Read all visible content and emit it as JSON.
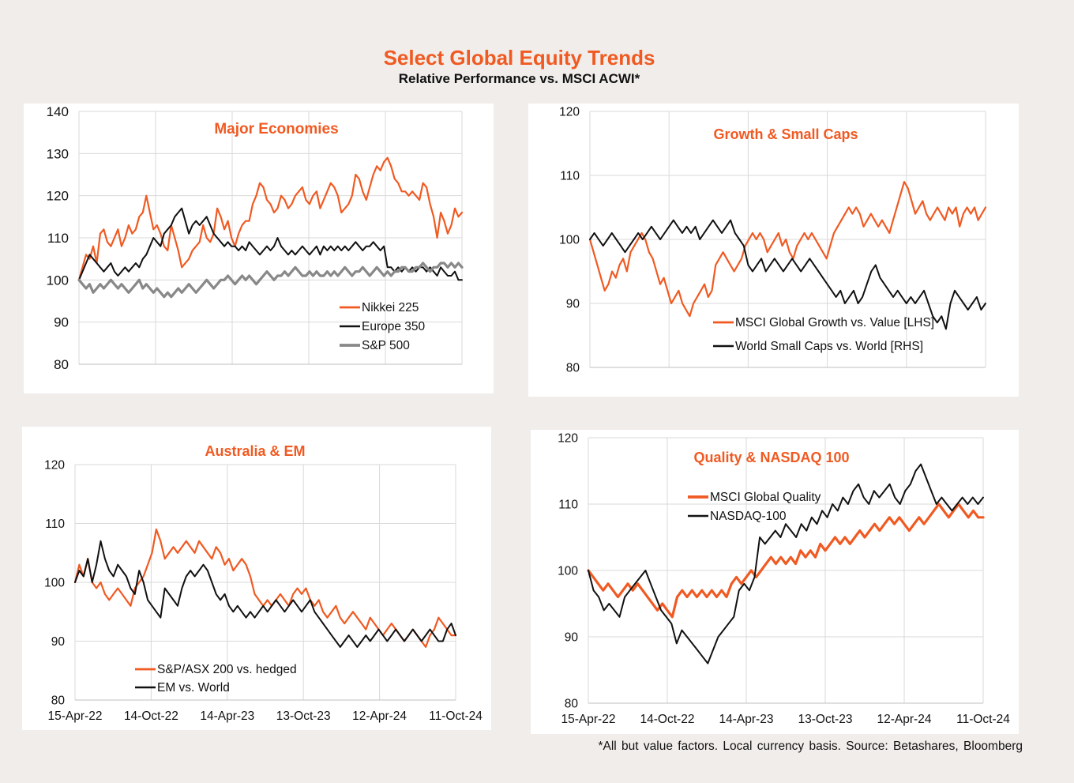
{
  "title": "Select Global Equity Trends",
  "subtitle": "Relative Performance vs. MSCI ACWI*",
  "footnote": "*All but value factors. Local currency basis.  Source: Betashares, Bloomberg",
  "colors": {
    "orange": "#f05a22",
    "black": "#111111",
    "grey": "#888888",
    "grid": "#d9d9d9"
  },
  "chart_data": [
    {
      "type": "line",
      "title": "Major Economies",
      "ylim": [
        80,
        140
      ],
      "yticks": [
        80,
        90,
        100,
        110,
        120,
        130,
        140
      ],
      "xlabels": [],
      "legend_position": "lower-right",
      "series": [
        {
          "name": "Nikkei 225",
          "color": "#f05a22",
          "width": 2.2,
          "values": [
            100,
            103,
            106,
            105,
            108,
            104,
            111,
            112,
            109,
            108,
            110,
            112,
            108,
            110,
            113,
            111,
            112,
            115,
            116,
            120,
            116,
            112,
            113,
            111,
            108,
            107,
            113,
            110,
            107,
            103,
            104,
            105,
            107,
            108,
            109,
            113,
            110,
            109,
            111,
            117,
            115,
            112,
            114,
            110,
            108,
            111,
            113,
            114,
            114,
            118,
            120,
            123,
            122,
            119,
            118,
            116,
            117,
            120,
            119,
            117,
            118,
            120,
            121,
            122,
            119,
            118,
            120,
            121,
            117,
            119,
            121,
            123,
            122,
            120,
            116,
            117,
            118,
            120,
            125,
            124,
            121,
            119,
            122,
            125,
            127,
            126,
            128,
            129,
            127,
            124,
            123,
            121,
            121,
            120,
            121,
            120,
            119,
            123,
            122,
            118,
            115,
            110,
            116,
            114,
            111,
            113,
            117,
            115,
            116
          ]
        },
        {
          "name": "Europe 350",
          "color": "#111111",
          "width": 2,
          "values": [
            100,
            102,
            104,
            106,
            105,
            104,
            103,
            102,
            103,
            104,
            102,
            101,
            102,
            103,
            102,
            103,
            104,
            103,
            105,
            106,
            108,
            110,
            109,
            108,
            111,
            112,
            113,
            115,
            116,
            117,
            114,
            111,
            113,
            114,
            113,
            114,
            115,
            113,
            111,
            110,
            109,
            108,
            109,
            108,
            108,
            107,
            108,
            107,
            109,
            108,
            107,
            106,
            107,
            108,
            107,
            108,
            110,
            108,
            107,
            106,
            107,
            106,
            107,
            108,
            107,
            106,
            107,
            108,
            106,
            108,
            107,
            108,
            107,
            108,
            107,
            108,
            107,
            108,
            109,
            108,
            107,
            108,
            108,
            109,
            108,
            107,
            108,
            103,
            103,
            102,
            103,
            102,
            103,
            102,
            103,
            102,
            103,
            103,
            102,
            103,
            102,
            101,
            103,
            102,
            101,
            101,
            102,
            100,
            100
          ]
        },
        {
          "name": "S&P 500",
          "color": "#888888",
          "width": 3.2,
          "values": [
            100,
            99,
            98,
            99,
            97,
            98,
            99,
            98,
            99,
            100,
            99,
            98,
            99,
            98,
            97,
            98,
            99,
            100,
            98,
            99,
            98,
            97,
            98,
            97,
            96,
            97,
            96,
            97,
            98,
            97,
            98,
            99,
            98,
            97,
            98,
            99,
            100,
            99,
            98,
            99,
            100,
            100,
            101,
            100,
            99,
            100,
            101,
            100,
            101,
            100,
            99,
            100,
            101,
            102,
            101,
            100,
            101,
            101,
            102,
            101,
            102,
            103,
            102,
            101,
            101,
            102,
            101,
            102,
            101,
            101,
            102,
            101,
            102,
            101,
            102,
            103,
            102,
            101,
            102,
            102,
            103,
            102,
            101,
            102,
            103,
            102,
            101,
            102,
            101,
            102,
            102,
            103,
            103,
            102,
            102,
            103,
            103,
            104,
            103,
            102,
            103,
            103,
            104,
            104,
            103,
            104,
            103,
            104,
            103
          ]
        }
      ]
    },
    {
      "type": "line",
      "title": "Growth & Small Caps",
      "ylim": [
        80,
        120
      ],
      "yticks": [
        80,
        90,
        100,
        110,
        120
      ],
      "xlabels": [],
      "legend_position": "lower-right",
      "series": [
        {
          "name": "MSCI Global Growth vs. Value [LHS]",
          "color": "#f05a22",
          "width": 2.2,
          "values": [
            100,
            98,
            96,
            94,
            92,
            93,
            95,
            94,
            96,
            97,
            95,
            98,
            99,
            100,
            101,
            100,
            98,
            97,
            95,
            93,
            94,
            92,
            90,
            91,
            92,
            90,
            89,
            88,
            90,
            91,
            92,
            93,
            91,
            92,
            96,
            97,
            98,
            97,
            96,
            95,
            96,
            97,
            99,
            100,
            101,
            100,
            101,
            100,
            98,
            99,
            100,
            101,
            99,
            100,
            98,
            97,
            99,
            100,
            101,
            100,
            101,
            100,
            99,
            98,
            97,
            99,
            101,
            102,
            103,
            104,
            105,
            104,
            105,
            104,
            102,
            103,
            104,
            103,
            102,
            103,
            102,
            101,
            103,
            105,
            107,
            109,
            108,
            106,
            104,
            105,
            106,
            104,
            103,
            104,
            105,
            104,
            103,
            105,
            104,
            105,
            102,
            104,
            105,
            104,
            105,
            103,
            104,
            105
          ]
        },
        {
          "name": "World Small Caps vs. World [RHS]",
          "color": "#111111",
          "width": 2,
          "values": [
            100,
            101,
            100,
            99,
            100,
            101,
            100,
            99,
            98,
            99,
            100,
            101,
            100,
            101,
            102,
            101,
            100,
            101,
            102,
            103,
            102,
            101,
            102,
            101,
            102,
            100,
            101,
            102,
            103,
            102,
            101,
            102,
            103,
            101,
            100,
            99,
            96,
            95,
            96,
            97,
            95,
            96,
            97,
            96,
            95,
            96,
            97,
            96,
            95,
            96,
            97,
            96,
            95,
            94,
            93,
            92,
            91,
            92,
            90,
            91,
            92,
            90,
            91,
            93,
            95,
            96,
            94,
            93,
            92,
            91,
            92,
            91,
            90,
            91,
            90,
            91,
            92,
            90,
            88,
            87,
            88,
            86,
            90,
            92,
            91,
            90,
            89,
            90,
            91,
            89,
            90
          ]
        }
      ]
    },
    {
      "type": "line",
      "title": "Australia & EM",
      "ylim": [
        80,
        120
      ],
      "yticks": [
        80,
        90,
        100,
        110,
        120
      ],
      "xlabels": [
        "15-Apr-22",
        "14-Oct-22",
        "14-Apr-23",
        "13-Oct-23",
        "12-Apr-24",
        "11-Oct-24"
      ],
      "legend_position": "lower-left",
      "series": [
        {
          "name": "S&P/ASX 200 vs. hedged",
          "color": "#f05a22",
          "width": 2.2,
          "values": [
            100,
            103,
            101,
            104,
            100,
            99,
            100,
            98,
            97,
            98,
            99,
            98,
            97,
            96,
            99,
            100,
            101,
            103,
            105,
            109,
            107,
            104,
            105,
            106,
            105,
            106,
            107,
            106,
            105,
            107,
            106,
            105,
            104,
            106,
            105,
            103,
            104,
            102,
            103,
            104,
            103,
            101,
            98,
            97,
            96,
            97,
            96,
            97,
            98,
            97,
            96,
            98,
            99,
            98,
            99,
            97,
            96,
            97,
            95,
            94,
            95,
            96,
            94,
            93,
            94,
            95,
            94,
            93,
            92,
            94,
            93,
            92,
            91,
            92,
            93,
            92,
            91,
            90,
            91,
            92,
            91,
            90,
            89,
            91,
            92,
            94,
            93,
            92,
            91,
            91
          ]
        },
        {
          "name": "EM vs. World",
          "color": "#111111",
          "width": 2,
          "values": [
            100,
            102,
            101,
            104,
            100,
            103,
            107,
            104,
            102,
            101,
            103,
            102,
            101,
            99,
            98,
            102,
            100,
            97,
            96,
            95,
            94,
            99,
            98,
            97,
            96,
            99,
            101,
            102,
            101,
            102,
            103,
            102,
            100,
            98,
            97,
            98,
            96,
            95,
            96,
            95,
            94,
            95,
            94,
            95,
            96,
            95,
            96,
            97,
            96,
            95,
            96,
            97,
            96,
            95,
            96,
            97,
            95,
            94,
            93,
            92,
            91,
            90,
            89,
            90,
            91,
            90,
            89,
            90,
            91,
            90,
            91,
            92,
            91,
            90,
            91,
            92,
            91,
            90,
            91,
            92,
            91,
            90,
            91,
            92,
            91,
            90,
            90,
            92,
            93,
            91
          ]
        }
      ]
    },
    {
      "type": "line",
      "title": "Quality & NASDAQ 100",
      "ylim": [
        80,
        120
      ],
      "yticks": [
        80,
        90,
        100,
        110,
        120
      ],
      "xlabels": [
        "15-Apr-22",
        "14-Oct-22",
        "14-Apr-23",
        "13-Oct-23",
        "12-Apr-24",
        "11-Oct-24"
      ],
      "legend_position": "upper-left",
      "series": [
        {
          "name": "MSCI Global Quality",
          "color": "#f05a22",
          "width": 3.2,
          "values": [
            100,
            99,
            98,
            97,
            98,
            97,
            96,
            97,
            98,
            97,
            98,
            97,
            96,
            95,
            94,
            95,
            94,
            93,
            96,
            97,
            96,
            97,
            96,
            97,
            96,
            97,
            96,
            97,
            96,
            98,
            99,
            98,
            99,
            100,
            99,
            100,
            101,
            102,
            101,
            102,
            101,
            102,
            101,
            103,
            102,
            103,
            102,
            104,
            103,
            104,
            105,
            104,
            105,
            104,
            105,
            106,
            105,
            106,
            107,
            106,
            107,
            108,
            107,
            108,
            107,
            106,
            107,
            108,
            107,
            108,
            109,
            110,
            109,
            108,
            109,
            110,
            109,
            108,
            109,
            108,
            108
          ]
        },
        {
          "name": "NASDAQ-100",
          "color": "#111111",
          "width": 2,
          "values": [
            100,
            97,
            96,
            94,
            95,
            94,
            93,
            96,
            97,
            98,
            99,
            100,
            98,
            96,
            94,
            93,
            92,
            89,
            91,
            90,
            89,
            88,
            87,
            86,
            88,
            90,
            91,
            92,
            93,
            97,
            98,
            97,
            99,
            105,
            104,
            105,
            106,
            105,
            107,
            106,
            105,
            107,
            106,
            108,
            107,
            109,
            108,
            110,
            109,
            111,
            110,
            112,
            113,
            111,
            110,
            112,
            111,
            112,
            113,
            111,
            110,
            112,
            113,
            115,
            116,
            114,
            112,
            110,
            111,
            110,
            109,
            110,
            111,
            110,
            111,
            110,
            111
          ]
        }
      ]
    }
  ]
}
